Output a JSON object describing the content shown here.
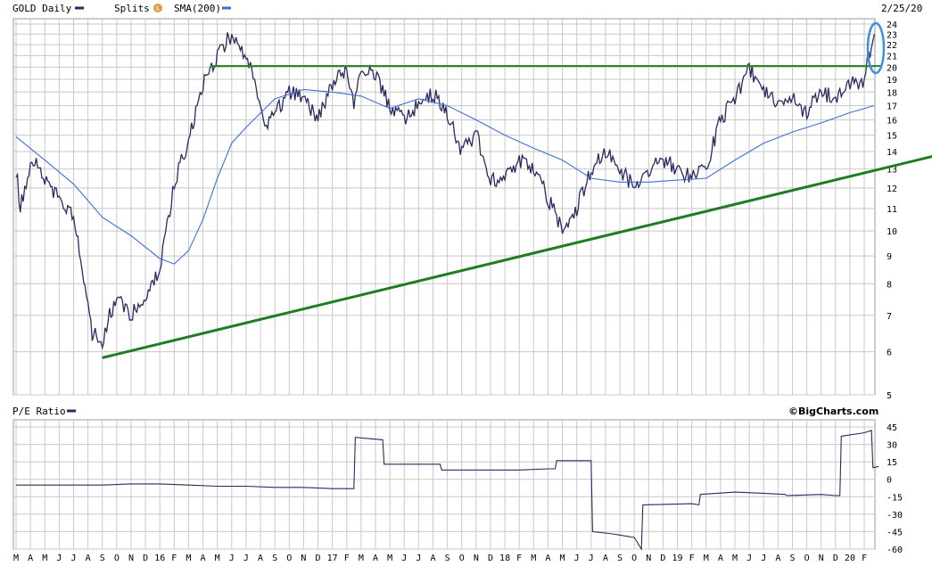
{
  "header": {
    "ticker_label": "GOLD Daily",
    "splits_label": "Splits",
    "splits_icon": "S",
    "sma_label": "SMA(200)",
    "date": "2/25/20",
    "watermark": "©BigCharts.com"
  },
  "colors": {
    "price": "#2a2a5e",
    "sma": "#3d6fd6",
    "support_line": "#1e7d1e",
    "resistance_line": "#2a8a2a",
    "highlight_ellipse": "#3d8fe0",
    "grid": "#c8c8c8",
    "splits_badge": "#d8a040"
  },
  "chart_data": [
    {
      "type": "line",
      "title": "GOLD Daily",
      "scale": "log",
      "ylim": [
        5,
        24
      ],
      "y_ticks": [
        "5",
        "6",
        "7",
        "8",
        "9",
        "10",
        "11",
        "12",
        "13",
        "14",
        "15",
        "16",
        "17",
        "18",
        "19",
        "20",
        "21",
        "22",
        "23",
        "24"
      ],
      "x_ticks": [
        "M",
        "A",
        "M",
        "J",
        "J",
        "A",
        "S",
        "O",
        "N",
        "D",
        "16",
        "F",
        "M",
        "A",
        "M",
        "J",
        "J",
        "A",
        "S",
        "O",
        "N",
        "D",
        "17",
        "F",
        "M",
        "A",
        "M",
        "J",
        "J",
        "A",
        "S",
        "O",
        "N",
        "D",
        "18",
        "F",
        "M",
        "A",
        "M",
        "J",
        "J",
        "A",
        "S",
        "O",
        "N",
        "D",
        "19",
        "F",
        "M",
        "A",
        "M",
        "J",
        "J",
        "A",
        "S",
        "O",
        "N",
        "D",
        "20",
        "F"
      ],
      "series": [
        {
          "name": "GOLD Daily",
          "x": [
            0,
            0.3,
            0.6,
            1.2,
            2.0,
            3.0,
            4.0,
            5.0,
            5.3,
            6.0,
            6.5,
            7.0,
            8.0,
            9.0,
            10.0,
            11.0,
            11.5,
            12.0,
            12.5,
            13.0,
            14.0,
            15.0,
            16.0,
            16.5,
            17.0,
            17.5,
            18.0,
            19.0,
            20.0,
            21.0,
            22.0,
            23.0,
            23.5,
            24.0,
            25.0,
            26.0,
            27.0,
            28.0,
            29.0,
            30.0,
            31.0,
            32.0,
            33.0,
            34.0,
            35.0,
            36.0,
            37.0,
            38.0,
            39.0,
            40.0,
            41.0,
            42.0,
            43.0,
            44.0,
            45.0,
            46.0,
            47.0,
            48.0,
            49.0,
            50.0,
            51.0,
            52.0,
            53.0,
            54.0,
            55.0,
            56.0,
            57.0,
            58.0,
            59.0,
            59.7
          ],
          "values": [
            13.0,
            11.0,
            12.0,
            13.5,
            12.5,
            11.5,
            10.5,
            7.2,
            6.5,
            6.2,
            7.0,
            7.5,
            7.0,
            7.5,
            8.5,
            12.0,
            13.5,
            14.5,
            16.5,
            18.5,
            21.0,
            23.0,
            21.0,
            19.0,
            17.0,
            15.5,
            16.5,
            18.0,
            17.5,
            16.0,
            18.5,
            20.0,
            17.0,
            20.0,
            19.5,
            17.0,
            16.0,
            17.0,
            18.0,
            16.5,
            14.0,
            15.0,
            12.5,
            12.5,
            13.5,
            13.0,
            11.5,
            10.0,
            11.0,
            13.0,
            14.0,
            13.0,
            12.0,
            13.0,
            13.5,
            13.0,
            12.5,
            13.0,
            16.0,
            17.5,
            20.0,
            18.0,
            17.0,
            17.5,
            16.5,
            18.0,
            17.5,
            18.5,
            19.0,
            23.0
          ]
        },
        {
          "name": "SMA(200)",
          "x": [
            0,
            2,
            4,
            6,
            8,
            10,
            11,
            12,
            13,
            14,
            15,
            16,
            18,
            20,
            22,
            24,
            26,
            28,
            30,
            32,
            34,
            36,
            38,
            40,
            42,
            44,
            46,
            48,
            50,
            52,
            54,
            56,
            58,
            59.7
          ],
          "values": [
            14.9,
            13.5,
            12.2,
            10.6,
            9.8,
            8.9,
            8.7,
            9.2,
            10.5,
            12.5,
            14.5,
            15.5,
            17.5,
            18.2,
            18.0,
            17.7,
            16.8,
            17.5,
            17.0,
            16.0,
            15.0,
            14.2,
            13.5,
            12.5,
            12.3,
            12.3,
            12.4,
            12.5,
            13.5,
            14.5,
            15.2,
            15.8,
            16.5,
            17.0
          ]
        },
        {
          "name": "support",
          "x": [
            6.0,
            60.5
          ],
          "values": [
            5.85,
            13.5
          ]
        },
        {
          "name": "resistance",
          "x": [
            13.5,
            60.5
          ],
          "values": [
            20.1,
            20.1
          ]
        }
      ]
    },
    {
      "type": "line",
      "title": "P/E Ratio",
      "ylim": [
        -60,
        45
      ],
      "y_ticks": [
        "45",
        "30",
        "15",
        "0",
        "-15",
        "-30",
        "-45",
        "-60"
      ],
      "series": [
        {
          "name": "P/E Ratio",
          "x": [
            0,
            2,
            4,
            6,
            8,
            10,
            12,
            14,
            16,
            18,
            20,
            22,
            23.5,
            23.6,
            25.5,
            25.6,
            29.5,
            29.6,
            35.0,
            37.0,
            37.5,
            37.6,
            40.0,
            40.1,
            41.5,
            42.0,
            43.0,
            43.5,
            43.6,
            47.0,
            47.5,
            47.6,
            50.0,
            52.0,
            53.5,
            53.6,
            56.0,
            57.0,
            57.3,
            57.4,
            59.0,
            59.5,
            59.6,
            60.0
          ],
          "values": [
            -5,
            -5,
            -5,
            -5,
            -4,
            -4,
            -5,
            -6,
            -6,
            -7,
            -7,
            -8,
            -8,
            36,
            34,
            13,
            13,
            8,
            8,
            9,
            9,
            16,
            16,
            -45,
            -47,
            -48,
            -50,
            -60,
            -22,
            -21,
            -22,
            -13,
            -11,
            -12,
            -13,
            -14,
            -13,
            -14,
            -14,
            37,
            40,
            42,
            10,
            11
          ]
        }
      ]
    }
  ]
}
